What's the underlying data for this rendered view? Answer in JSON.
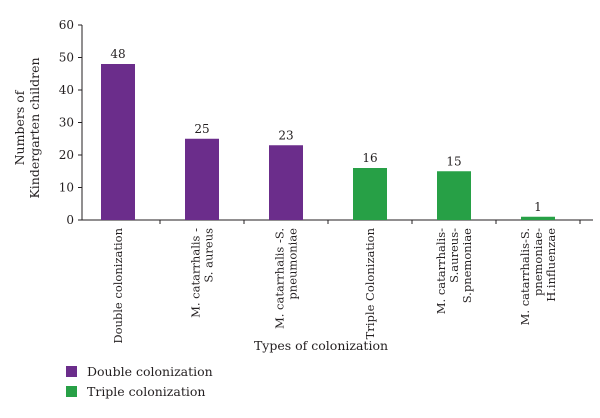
{
  "chart_data": {
    "type": "bar",
    "categories": [
      [
        "Double colonization"
      ],
      [
        "M. catarrhalis -",
        "S. aureus"
      ],
      [
        "M. catarrhalis -S.",
        "pneumoniae"
      ],
      [
        "Triple Colonization"
      ],
      [
        "M. catarrhalis-",
        "S.aureus-",
        "S.pnemoniae"
      ],
      [
        "M. catarrhalis-S.",
        "pnemoniae-",
        "H.influenzae"
      ]
    ],
    "values": [
      48,
      25,
      23,
      16,
      15,
      1
    ],
    "groups": [
      "Double colonization",
      "Double colonization",
      "Double colonization",
      "Triple colonization",
      "Triple colonization",
      "Triple colonization"
    ],
    "xlabel": "Types of colonization",
    "ylabel": [
      "Numbers of",
      "Kindergarten children"
    ],
    "ylim": [
      0,
      60
    ],
    "yticks": [
      0,
      10,
      20,
      30,
      40,
      50,
      60
    ],
    "grid": false,
    "legend_placement": "bottom-left",
    "legend": [
      {
        "label": "Double colonization",
        "color": "#6b2d8b"
      },
      {
        "label": "Triple colonization",
        "color": "#27a046"
      }
    ]
  }
}
